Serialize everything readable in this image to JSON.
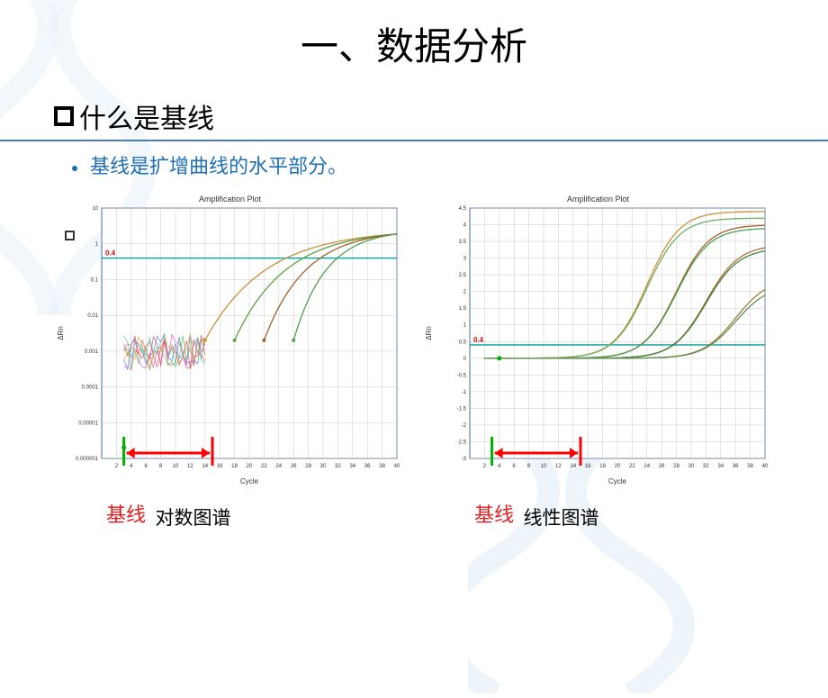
{
  "slide": {
    "title": "一、数据分析",
    "subtitle": "什么是基线",
    "bullet_text": "基线是扩增曲线的水平部分。",
    "baseline_word": "基线",
    "colors": {
      "title": "#000000",
      "subtitle": "#000000",
      "bullet": "#1f6fb5",
      "divider": "#4a7ebb",
      "baseline_label": "#e02020"
    }
  },
  "chart_left": {
    "type": "line",
    "title": "Amplification Plot",
    "caption": "对数图谱",
    "xlabel": "Cycle",
    "ylabel": "ΔRn",
    "yscale": "log",
    "xlim": [
      0,
      40
    ],
    "ylim": [
      1e-06,
      10
    ],
    "xticks": [
      2,
      4,
      6,
      8,
      10,
      12,
      14,
      16,
      18,
      20,
      22,
      24,
      26,
      28,
      30,
      32,
      34,
      36,
      38,
      40
    ],
    "yticks": [
      1e-06,
      1e-05,
      0.0001,
      0.001,
      0.01,
      0.1,
      1,
      10
    ],
    "ytick_labels": [
      "0.000001",
      "0.00001",
      "0.0001",
      "0.001",
      "0.01",
      "0.1",
      "1",
      "10"
    ],
    "threshold": {
      "value": 0.4,
      "label": "0.4",
      "color": "#00a0a0",
      "label_color": "#d01010"
    },
    "baseline_marker": {
      "x_start": 3,
      "x_end": 15,
      "arrow_color": "#ff0000",
      "bar_color": "#00b000"
    },
    "noise_region": {
      "x_range": [
        3,
        14
      ],
      "y_range": [
        0.0003,
        0.003
      ]
    },
    "series_colors": [
      "#c89040",
      "#60a040",
      "#a05030",
      "#408040",
      "#b08030"
    ],
    "curves": [
      {
        "ct": 14,
        "color": "#c89040"
      },
      {
        "ct": 18,
        "color": "#60a040"
      },
      {
        "ct": 22,
        "color": "#a06030"
      },
      {
        "ct": 26,
        "color": "#50a050"
      }
    ],
    "grid_color": "#bcbcbc",
    "border_color": "#4a6aa0",
    "background": "#ffffff",
    "title_fontsize": 9,
    "axis_label_fontsize": 8,
    "tick_fontsize": 6
  },
  "chart_right": {
    "type": "line",
    "title": "Amplification Plot",
    "caption": "线性图谱",
    "xlabel": "Cycle",
    "ylabel": "ΔRn",
    "yscale": "linear",
    "xlim": [
      0,
      40
    ],
    "ylim": [
      -3.0,
      4.5
    ],
    "xticks": [
      2,
      4,
      6,
      8,
      10,
      12,
      14,
      16,
      18,
      20,
      22,
      24,
      26,
      28,
      30,
      32,
      34,
      36,
      38,
      40
    ],
    "yticks": [
      -3.0,
      -2.5,
      -2.0,
      -1.5,
      -1.0,
      -0.5,
      0.0,
      0.5,
      1.0,
      1.5,
      2.0,
      2.5,
      3.0,
      3.5,
      4.0,
      4.5
    ],
    "threshold": {
      "value": 0.4,
      "label": "0.4",
      "color": "#00a0a0",
      "label_color": "#d01010"
    },
    "baseline_marker": {
      "x_start": 3,
      "x_end": 15,
      "arrow_color": "#ff0000",
      "bar_color": "#00b000"
    },
    "series_colors": [
      "#c89040",
      "#60a040",
      "#a05030",
      "#408040",
      "#b08030",
      "#70b060"
    ],
    "curves": [
      {
        "ct": 18,
        "plateau": 4.4,
        "color": "#c89040"
      },
      {
        "ct": 18,
        "plateau": 4.2,
        "color": "#70b060"
      },
      {
        "ct": 22,
        "plateau": 4.0,
        "color": "#a06030"
      },
      {
        "ct": 22,
        "plateau": 3.9,
        "color": "#50a050"
      },
      {
        "ct": 26,
        "plateau": 3.4,
        "color": "#b07030"
      },
      {
        "ct": 26,
        "plateau": 3.3,
        "color": "#408040"
      },
      {
        "ct": 30,
        "plateau": 2.4,
        "color": "#a08040"
      },
      {
        "ct": 30,
        "plateau": 2.2,
        "color": "#609050"
      }
    ],
    "grid_color": "#bcbcbc",
    "border_color": "#4a6aa0",
    "background": "#ffffff",
    "title_fontsize": 9,
    "axis_label_fontsize": 8,
    "tick_fontsize": 6
  }
}
